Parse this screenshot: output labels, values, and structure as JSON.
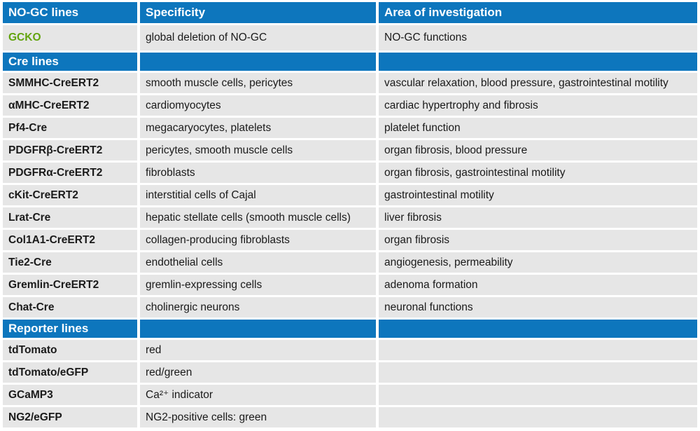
{
  "colors": {
    "header_bg": "#0d76bd",
    "section_bg": "#0d76bd",
    "row_bg": "#e6e6e6",
    "gap": "#ffffff",
    "header_text": "#ffffff",
    "body_text": "#1a1a1a",
    "gcko_green": "#63a40f"
  },
  "chart_data": {
    "type": "table",
    "title": "",
    "columns": [
      "NO-GC lines",
      "Specificity",
      "Area of investigation"
    ],
    "rows": [
      {
        "type": "data",
        "name": "GCKO",
        "name_color": "#63a40f",
        "tall": true,
        "specificity": "global deletion of NO-GC",
        "area": "NO-GC functions"
      },
      {
        "type": "section",
        "name": "Cre lines"
      },
      {
        "type": "data",
        "name": "SMMHC-CreERT2",
        "specificity": "smooth muscle cells, pericytes",
        "area": "vascular relaxation, blood pressure, gastrointestinal motility"
      },
      {
        "type": "data",
        "name": "αMHC-CreERT2",
        "specificity": "cardiomyocytes",
        "area": "cardiac hypertrophy and fibrosis"
      },
      {
        "type": "data",
        "name": "Pf4-Cre",
        "specificity": "megacaryocytes, platelets",
        "area": "platelet function"
      },
      {
        "type": "data",
        "name": "PDGFRβ-CreERT2",
        "specificity": "pericytes, smooth muscle cells",
        "area": "organ fibrosis, blood pressure"
      },
      {
        "type": "data",
        "name": "PDGFRα-CreERT2",
        "specificity": "fibroblasts",
        "area": "organ fibrosis, gastrointestinal motility"
      },
      {
        "type": "data",
        "name": "cKit-CreERT2",
        "specificity": "interstitial cells of Cajal",
        "area": "gastrointestinal motility"
      },
      {
        "type": "data",
        "name": "Lrat-Cre",
        "specificity": "hepatic stellate cells (smooth muscle cells)",
        "area": "liver fibrosis"
      },
      {
        "type": "data",
        "name": "Col1A1-CreERT2",
        "specificity": "collagen-producing fibroblasts",
        "area": "organ fibrosis"
      },
      {
        "type": "data",
        "name": "Tie2-Cre",
        "specificity": "endothelial cells",
        "area": "angiogenesis, permeability"
      },
      {
        "type": "data",
        "name": "Gremlin-CreERT2",
        "specificity": "gremlin-expressing cells",
        "area": "adenoma formation"
      },
      {
        "type": "data",
        "name": "Chat-Cre",
        "specificity": "cholinergic neurons",
        "area": "neuronal functions"
      },
      {
        "type": "section",
        "name": "Reporter lines"
      },
      {
        "type": "data",
        "name": "tdTomato",
        "specificity": "red",
        "area": ""
      },
      {
        "type": "data",
        "name": "tdTomato/eGFP",
        "specificity": "red/green",
        "area": ""
      },
      {
        "type": "data",
        "name": "GCaMP3",
        "specificity": "Ca²⁺ indicator",
        "area": ""
      },
      {
        "type": "data",
        "name": "NG2/eGFP",
        "specificity": "NG2-positive cells: green",
        "area": ""
      }
    ]
  }
}
